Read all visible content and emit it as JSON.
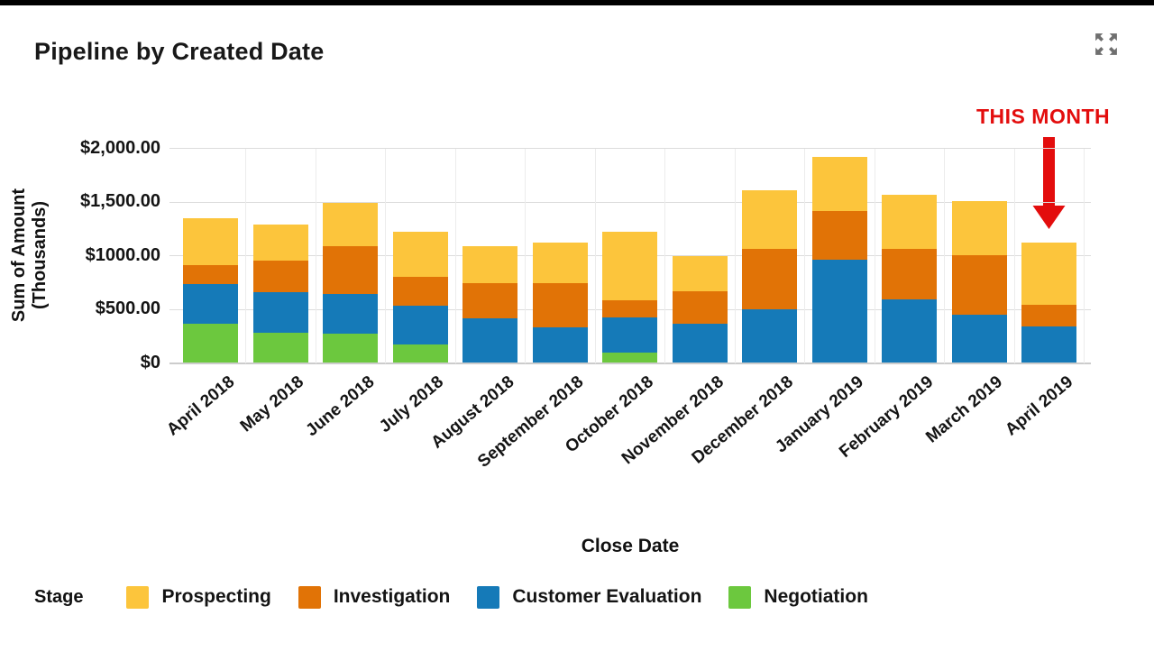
{
  "header": {
    "title": "Pipeline by Created Date",
    "expand_icon": "expand-icon",
    "expand_icon_color": "#6f6f6f"
  },
  "annotation": {
    "text": "THIS MONTH",
    "color": "#e30d0d",
    "target_category": "April 2019"
  },
  "colors": {
    "prospecting": "#fcc53c",
    "investigation": "#e17306",
    "customer_evaluation": "#157ab8",
    "negotiation": "#6cc83e",
    "gridline": "#dcdcdc",
    "baseline": "#cccccc",
    "text": "#141414"
  },
  "chart_data": {
    "type": "bar",
    "stacked": true,
    "title": "Pipeline by Created Date",
    "xlabel": "Close Date",
    "ylabel": "Sum of Amount (Thousands)",
    "ylabel_lines": [
      "Sum of Amount",
      "(Thousands)"
    ],
    "ylim": [
      0,
      2000
    ],
    "grid": true,
    "legend_position": "bottom",
    "legend_title": "Stage",
    "yticks": [
      {
        "label": "$2,000.00",
        "value": 2000
      },
      {
        "label": "$1,500.00",
        "value": 1500
      },
      {
        "label": "$1000.00",
        "value": 1000
      },
      {
        "label": "$500.00",
        "value": 500
      },
      {
        "label": "$0",
        "value": 0
      }
    ],
    "categories": [
      "April 2018",
      "May 2018",
      "June 2018",
      "July 2018",
      "August 2018",
      "September 2018",
      "October 2018",
      "November 2018",
      "December 2018",
      "January 2019",
      "February 2019",
      "March 2019",
      "April 2019"
    ],
    "series": [
      {
        "name": "Prospecting",
        "color": "#fcc53c",
        "values": [
          435,
          335,
          410,
          420,
          345,
          380,
          640,
          330,
          545,
          505,
          500,
          500,
          580
        ]
      },
      {
        "name": "Investigation",
        "color": "#e17306",
        "values": [
          180,
          295,
          440,
          270,
          330,
          410,
          160,
          305,
          565,
          455,
          470,
          555,
          205
        ]
      },
      {
        "name": "Customer Evaluation",
        "color": "#157ab8",
        "values": [
          370,
          380,
          370,
          360,
          415,
          335,
          325,
          365,
          500,
          960,
          595,
          450,
          340
        ]
      },
      {
        "name": "Negotiation",
        "color": "#6cc83e",
        "values": [
          365,
          280,
          275,
          175,
          0,
          0,
          100,
          0,
          0,
          0,
          0,
          0,
          0
        ]
      }
    ],
    "totals": [
      1350,
      1290,
      1495,
      1225,
      1090,
      1125,
      1225,
      1000,
      1610,
      1920,
      1565,
      1505,
      1125
    ]
  }
}
